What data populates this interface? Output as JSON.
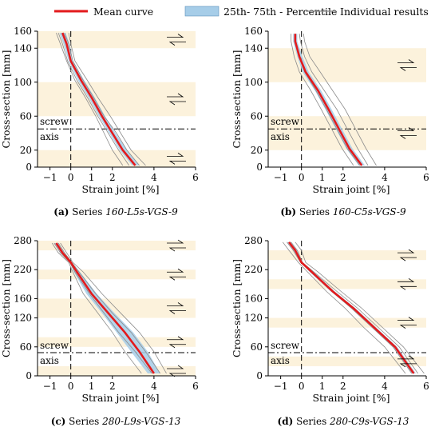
{
  "legend": {
    "items": [
      {
        "label": "Mean curve",
        "kind": "line",
        "color": "#e31a1c"
      },
      {
        "label": "25th- 75th - Percentile",
        "kind": "band",
        "color": "#a6cde8"
      },
      {
        "label": "Individual results",
        "kind": "line",
        "color": "#8c8c8c"
      }
    ]
  },
  "colors": {
    "mean": "#e31a1c",
    "band": "#a6cde8",
    "individual": "#8c8c8c",
    "layer": "#fcf2dc",
    "axis": "#000000"
  },
  "chart_data": [
    {
      "type": "line",
      "caption_prefix": "(a)",
      "caption_text": "Series ",
      "caption_series": "160-L5s-VGS-9",
      "xlabel": "Strain joint [%]",
      "ylabel": "Cross-section [mm]",
      "xlim": [
        -1.6,
        6
      ],
      "ylim": [
        0,
        160
      ],
      "xticks": [
        -1,
        0,
        1,
        2,
        4,
        6
      ],
      "yticks": [
        0,
        20,
        60,
        100,
        140,
        160
      ],
      "axis_label_top": "screw",
      "axis_label_bottom": "axis",
      "axis_y": 45,
      "shaded_bands": [
        [
          0,
          20
        ],
        [
          60,
          100
        ],
        [
          140,
          160
        ]
      ],
      "mean_curve": {
        "x": [
          -0.4,
          -0.2,
          0.0,
          0.5,
          1.0,
          1.5,
          2.0,
          2.5,
          3.1
        ],
        "y": [
          158,
          145,
          125,
          102,
          82,
          60,
          40,
          20,
          2
        ]
      },
      "percentile_band": {
        "x_low": [
          -0.55,
          -0.35,
          -0.1,
          0.35,
          0.85,
          1.35,
          1.85,
          2.35,
          2.95
        ],
        "x_high": [
          -0.25,
          -0.05,
          0.1,
          0.65,
          1.15,
          1.65,
          2.15,
          2.7,
          3.3
        ],
        "y": [
          158,
          145,
          125,
          102,
          82,
          60,
          40,
          20,
          2
        ]
      },
      "individual_results": [
        {
          "x": [
            -0.7,
            -0.5,
            -0.2,
            0.2,
            0.7,
            1.2,
            1.6,
            2.0,
            2.5
          ],
          "y": [
            158,
            145,
            125,
            102,
            82,
            60,
            40,
            20,
            2
          ]
        },
        {
          "x": [
            -0.6,
            -0.4,
            -0.15,
            0.3,
            0.8,
            1.3,
            1.8,
            2.3,
            2.8
          ],
          "y": [
            158,
            145,
            125,
            102,
            82,
            60,
            40,
            20,
            2
          ]
        },
        {
          "x": [
            -0.3,
            -0.1,
            0.1,
            0.6,
            1.1,
            1.6,
            2.2,
            2.7,
            3.3
          ],
          "y": [
            158,
            145,
            125,
            102,
            82,
            60,
            40,
            20,
            2
          ]
        },
        {
          "x": [
            -0.1,
            0.0,
            0.2,
            0.8,
            1.3,
            1.9,
            2.4,
            2.9,
            3.6
          ],
          "y": [
            158,
            145,
            125,
            102,
            82,
            60,
            40,
            20,
            2
          ]
        }
      ]
    },
    {
      "type": "line",
      "caption_prefix": "(b)",
      "caption_text": "Series ",
      "caption_series": "160-C5s-VGS-9",
      "xlabel": "Strain joint [%]",
      "ylabel": "Cross-section [mm]",
      "xlim": [
        -1.6,
        6
      ],
      "ylim": [
        0,
        160
      ],
      "xticks": [
        -1,
        0,
        1,
        2,
        4,
        6
      ],
      "yticks": [
        0,
        20,
        60,
        100,
        140,
        160
      ],
      "axis_label_top": "screw",
      "axis_label_bottom": "axis",
      "axis_y": 45,
      "shaded_bands": [
        [
          20,
          60
        ],
        [
          100,
          140
        ]
      ],
      "mean_curve": {
        "x": [
          -0.3,
          -0.3,
          -0.1,
          0.2,
          0.8,
          1.3,
          1.8,
          2.3,
          2.9
        ],
        "y": [
          157,
          148,
          130,
          112,
          90,
          68,
          45,
          22,
          2
        ]
      },
      "percentile_band": {
        "x_low": [
          -0.4,
          -0.4,
          -0.2,
          0.05,
          0.65,
          1.15,
          1.65,
          2.15,
          2.75
        ],
        "x_high": [
          -0.2,
          -0.2,
          0.05,
          0.35,
          0.95,
          1.45,
          1.95,
          2.45,
          3.05
        ],
        "y": [
          157,
          148,
          130,
          112,
          90,
          68,
          45,
          22,
          2
        ]
      },
      "individual_results": [
        {
          "x": [
            -0.5,
            -0.5,
            -0.35,
            -0.1,
            0.45,
            0.95,
            1.45,
            1.95,
            2.5
          ],
          "y": [
            157,
            148,
            130,
            112,
            90,
            68,
            45,
            22,
            2
          ]
        },
        {
          "x": [
            -0.3,
            -0.3,
            -0.1,
            0.15,
            0.7,
            1.2,
            1.7,
            2.2,
            2.8
          ],
          "y": [
            157,
            148,
            130,
            112,
            90,
            68,
            45,
            22,
            2
          ]
        },
        {
          "x": [
            -0.1,
            -0.05,
            0.15,
            0.5,
            1.1,
            1.7,
            2.2,
            2.7,
            3.2
          ],
          "y": [
            157,
            148,
            130,
            112,
            90,
            68,
            45,
            22,
            2
          ]
        },
        {
          "x": [
            0.1,
            0.15,
            0.4,
            0.9,
            1.5,
            2.1,
            2.6,
            3.1,
            3.6
          ],
          "y": [
            157,
            148,
            130,
            112,
            90,
            68,
            45,
            22,
            2
          ]
        }
      ]
    },
    {
      "type": "line",
      "caption_prefix": "(c)",
      "caption_text": "Series ",
      "caption_series": "280-L9s-VGS-13",
      "xlabel": "Strain joint [%]",
      "ylabel": "Cross-section [mm]",
      "xlim": [
        -1.6,
        6
      ],
      "ylim": [
        0,
        280
      ],
      "xticks": [
        -1,
        0,
        1,
        2,
        4,
        6
      ],
      "yticks": [
        0,
        60,
        120,
        160,
        220,
        280
      ],
      "axis_label_top": "screw",
      "axis_label_bottom": "axis",
      "axis_y": 48,
      "shaded_bands": [
        [
          0,
          20
        ],
        [
          60,
          80
        ],
        [
          120,
          160
        ],
        [
          200,
          220
        ],
        [
          260,
          280
        ]
      ],
      "mean_curve": {
        "x": [
          -0.7,
          -0.4,
          0.0,
          0.3,
          1.0,
          1.8,
          2.6,
          3.3,
          4.0
        ],
        "y": [
          275,
          255,
          235,
          215,
          170,
          130,
          90,
          50,
          5
        ]
      },
      "percentile_band": {
        "x_low": [
          -0.8,
          -0.5,
          -0.05,
          0.15,
          0.75,
          1.5,
          2.2,
          2.9,
          3.7
        ],
        "x_high": [
          -0.6,
          -0.3,
          0.05,
          0.45,
          1.25,
          2.1,
          3.0,
          3.7,
          4.3
        ],
        "y": [
          275,
          255,
          235,
          215,
          170,
          130,
          90,
          50,
          5
        ]
      },
      "individual_results": [
        {
          "x": [
            -0.9,
            -0.6,
            -0.1,
            0.1,
            0.6,
            1.3,
            2.0,
            2.6,
            3.4
          ],
          "y": [
            275,
            255,
            235,
            215,
            170,
            130,
            90,
            50,
            5
          ]
        },
        {
          "x": [
            -0.8,
            -0.5,
            -0.05,
            0.2,
            0.9,
            1.6,
            2.3,
            3.1,
            3.9
          ],
          "y": [
            275,
            255,
            235,
            215,
            170,
            130,
            90,
            50,
            5
          ]
        },
        {
          "x": [
            -0.6,
            -0.3,
            0.05,
            0.4,
            1.2,
            2.0,
            2.9,
            3.6,
            4.3
          ],
          "y": [
            275,
            255,
            235,
            215,
            170,
            130,
            90,
            50,
            5
          ]
        },
        {
          "x": [
            -0.5,
            -0.2,
            0.1,
            0.6,
            1.5,
            2.4,
            3.3,
            4.0,
            4.6
          ],
          "y": [
            275,
            255,
            235,
            215,
            170,
            130,
            90,
            50,
            5
          ]
        }
      ]
    },
    {
      "type": "line",
      "caption_prefix": "(d)",
      "caption_text": "Series ",
      "caption_series": "280-C9s-VGS-13",
      "xlabel": "Strain joint [%]",
      "ylabel": "Cross-section [mm]",
      "xlim": [
        -1.6,
        6
      ],
      "ylim": [
        0,
        280
      ],
      "xticks": [
        -1,
        0,
        1,
        2,
        4,
        6
      ],
      "yticks": [
        0,
        60,
        120,
        160,
        220,
        280
      ],
      "axis_label_top": "screw",
      "axis_label_bottom": "axis",
      "axis_y": 48,
      "shaded_bands": [
        [
          20,
          40
        ],
        [
          100,
          120
        ],
        [
          180,
          200
        ],
        [
          240,
          260
        ]
      ],
      "mean_curve": {
        "x": [
          -0.6,
          -0.3,
          0.0,
          0.5,
          1.5,
          2.5,
          3.5,
          4.5,
          5.4
        ],
        "y": [
          277,
          260,
          235,
          215,
          175,
          140,
          100,
          60,
          5
        ]
      },
      "percentile_band": {
        "x_low": [
          -0.7,
          -0.4,
          -0.05,
          0.4,
          1.4,
          2.4,
          3.4,
          4.4,
          5.3
        ],
        "x_high": [
          -0.5,
          -0.2,
          0.05,
          0.6,
          1.6,
          2.6,
          3.6,
          4.6,
          5.5
        ],
        "y": [
          277,
          260,
          235,
          215,
          175,
          140,
          100,
          60,
          5
        ]
      },
      "individual_results": [
        {
          "x": [
            -0.9,
            -0.6,
            -0.15,
            0.3,
            1.2,
            2.1,
            3.0,
            4.0,
            5.0
          ],
          "y": [
            277,
            260,
            235,
            215,
            175,
            140,
            100,
            60,
            5
          ]
        },
        {
          "x": [
            -0.7,
            -0.4,
            -0.05,
            0.45,
            1.45,
            2.4,
            3.4,
            4.4,
            5.3
          ],
          "y": [
            277,
            260,
            235,
            215,
            175,
            140,
            100,
            60,
            5
          ]
        },
        {
          "x": [
            -0.5,
            -0.2,
            0.05,
            0.6,
            1.7,
            2.7,
            3.7,
            4.7,
            5.6
          ],
          "y": [
            277,
            260,
            235,
            215,
            175,
            140,
            100,
            60,
            5
          ]
        },
        {
          "x": [
            -0.3,
            0.0,
            0.2,
            0.8,
            1.9,
            2.9,
            3.9,
            4.9,
            5.9
          ],
          "y": [
            277,
            260,
            235,
            215,
            175,
            140,
            100,
            60,
            5
          ]
        }
      ]
    }
  ]
}
